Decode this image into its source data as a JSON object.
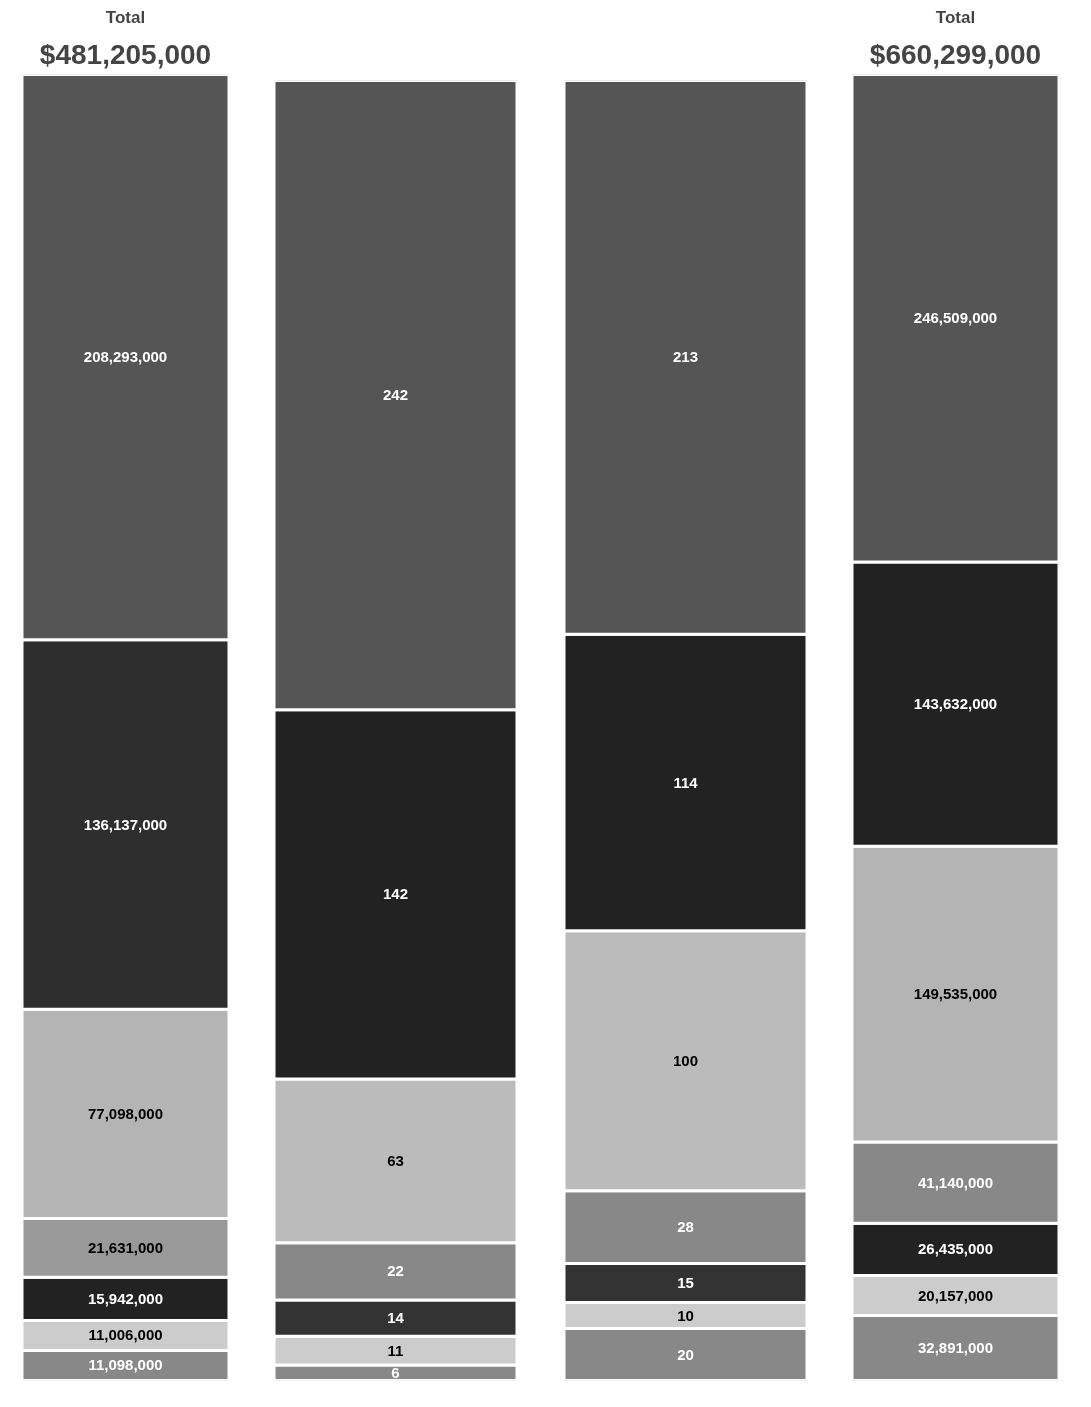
{
  "chart_data": [
    {
      "type": "bar",
      "title": "Total",
      "subtitle": "$481,205,000",
      "categories": [
        null
      ],
      "stacked": true,
      "tick_labels": false,
      "series": [
        {
          "color": "#888888",
          "values": [
            11098000
          ],
          "value_labels": [
            "11,098,000"
          ]
        },
        {
          "color": "#cccccc",
          "values": [
            11006000
          ],
          "value_labels": [
            "11,006,000"
          ]
        },
        {
          "color": "#222222",
          "values": [
            15942000
          ],
          "value_labels": [
            "15,942,000"
          ]
        },
        {
          "color": "#999999",
          "values": [
            21631000
          ],
          "value_labels": [
            "21,631,000"
          ]
        },
        {
          "color": "#b4b4b4",
          "values": [
            77098000
          ],
          "value_labels": [
            "77,098,000"
          ]
        },
        {
          "color": "#2e2e2e",
          "values": [
            136137000
          ],
          "value_labels": [
            "136,137,000"
          ]
        },
        {
          "color": "#555555",
          "values": [
            208293000
          ],
          "value_labels": [
            "208,293,000"
          ]
        }
      ]
    },
    {
      "type": "bar",
      "categories": [
        null
      ],
      "stacked": true,
      "tick_labels": false,
      "series": [
        {
          "color": "#888888",
          "values": [
            6
          ],
          "value_labels": [
            "6"
          ]
        },
        {
          "color": "#cccccc",
          "values": [
            11
          ],
          "value_labels": [
            "11"
          ]
        },
        {
          "color": "#333333",
          "values": [
            14
          ],
          "value_labels": [
            "14"
          ]
        },
        {
          "color": "#888888",
          "values": [
            22
          ],
          "value_labels": [
            "22"
          ]
        },
        {
          "color": "#bbbbbb",
          "values": [
            63
          ],
          "value_labels": [
            "63"
          ]
        },
        {
          "color": "#222222",
          "values": [
            142
          ],
          "value_labels": [
            "142"
          ]
        },
        {
          "color": "#555555",
          "values": [
            242
          ],
          "value_labels": [
            "242"
          ]
        }
      ]
    },
    {
      "type": "bar",
      "categories": [
        null
      ],
      "stacked": true,
      "tick_labels": false,
      "series": [
        {
          "color": "#888888",
          "values": [
            20
          ],
          "value_labels": [
            "20"
          ]
        },
        {
          "color": "#cccccc",
          "values": [
            10
          ],
          "value_labels": [
            "10"
          ]
        },
        {
          "color": "#333333",
          "values": [
            15
          ],
          "value_labels": [
            "15"
          ]
        },
        {
          "color": "#888888",
          "values": [
            28
          ],
          "value_labels": [
            "28"
          ]
        },
        {
          "color": "#bbbbbb",
          "values": [
            100
          ],
          "value_labels": [
            "100"
          ]
        },
        {
          "color": "#222222",
          "values": [
            114
          ],
          "value_labels": [
            "114"
          ]
        },
        {
          "color": "#555555",
          "values": [
            213
          ],
          "value_labels": [
            "213"
          ]
        }
      ]
    },
    {
      "type": "bar",
      "title": "Total",
      "subtitle": "$660,299,000",
      "categories": [
        null
      ],
      "stacked": true,
      "tick_labels": false,
      "series": [
        {
          "color": "#888888",
          "values": [
            32891000
          ],
          "value_labels": [
            "32,891,000"
          ]
        },
        {
          "color": "#cccccc",
          "values": [
            20157000
          ],
          "value_labels": [
            "20,157,000"
          ]
        },
        {
          "color": "#222222",
          "values": [
            26435000
          ],
          "value_labels": [
            "26,435,000"
          ]
        },
        {
          "color": "#888888",
          "values": [
            41140000
          ],
          "value_labels": [
            "41,140,000"
          ]
        },
        {
          "color": "#b4b4b4",
          "values": [
            149535000
          ],
          "value_labels": [
            "149,535,000"
          ]
        },
        {
          "color": "#222222",
          "values": [
            143632000
          ],
          "value_labels": [
            "143,632,000"
          ]
        },
        {
          "color": "#555555",
          "values": [
            246509000
          ],
          "value_labels": [
            "246,509,000"
          ]
        }
      ]
    }
  ]
}
